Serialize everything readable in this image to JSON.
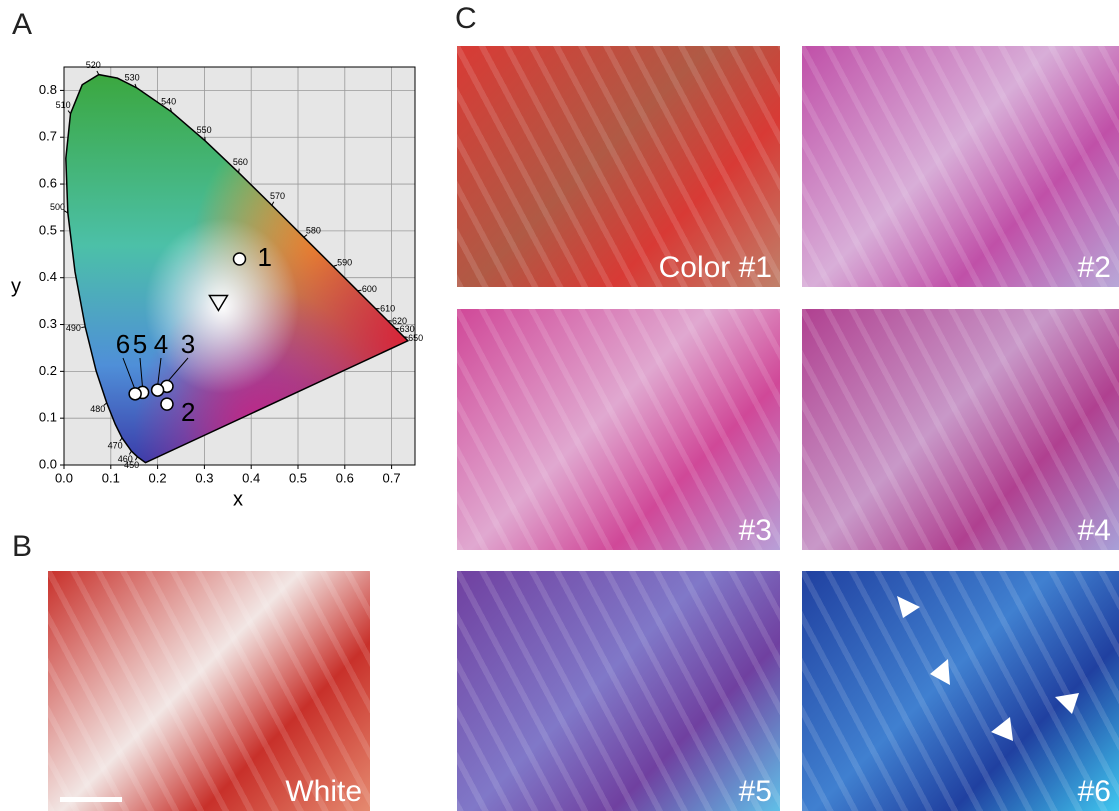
{
  "chart_data": {
    "type": "scatter",
    "x_label": "x",
    "y_label": "y",
    "xlim": [
      0,
      0.75
    ],
    "ylim": [
      0,
      0.85
    ],
    "xticks": [
      {
        "value": 0,
        "label": "0.0"
      },
      0.1,
      0.2,
      0.3,
      0.4,
      0.5,
      0.6,
      0.7
    ],
    "yticks": [
      {
        "value": 0,
        "label": "0.0"
      },
      0.1,
      0.2,
      0.3,
      0.4,
      0.5,
      0.6,
      0.7,
      0.8
    ],
    "grid": true,
    "locus": {
      "labels": [
        null,
        450,
        460,
        470,
        null,
        480,
        null,
        490,
        null,
        500,
        null,
        510,
        null,
        520,
        null,
        530,
        540,
        550,
        560,
        570,
        580,
        590,
        600,
        610,
        620,
        630,
        650,
        null
      ],
      "x": [
        0.1741,
        0.1566,
        0.144,
        0.1241,
        0.1096,
        0.0913,
        0.0687,
        0.0454,
        0.0235,
        0.0082,
        0.0039,
        0.0139,
        0.0389,
        0.0743,
        0.1142,
        0.1547,
        0.2296,
        0.3016,
        0.3731,
        0.4441,
        0.5125,
        0.5752,
        0.627,
        0.6658,
        0.6915,
        0.7079,
        0.726,
        0.7347
      ],
      "y": [
        0.005,
        0.0177,
        0.0297,
        0.0578,
        0.0868,
        0.1327,
        0.2007,
        0.295,
        0.4127,
        0.5384,
        0.6548,
        0.7502,
        0.812,
        0.8338,
        0.8262,
        0.8059,
        0.7543,
        0.6923,
        0.6245,
        0.5547,
        0.4866,
        0.4242,
        0.3725,
        0.334,
        0.3083,
        0.292,
        0.274,
        0.2653
      ]
    },
    "points": {
      "labels": [
        "1",
        "2",
        "3",
        "4",
        "5",
        "6"
      ],
      "x": [
        0.375,
        0.22,
        0.22,
        0.2,
        0.168,
        0.152
      ],
      "y": [
        0.44,
        0.13,
        0.168,
        0.16,
        0.155,
        0.152
      ]
    },
    "white_point": {
      "x": 0.33,
      "y": 0.345
    }
  },
  "panel_labels": [
    "A",
    "B",
    "C"
  ],
  "photos": [
    "White",
    "Color #1",
    "#2",
    "#3",
    "#4",
    "#5",
    "#6"
  ]
}
